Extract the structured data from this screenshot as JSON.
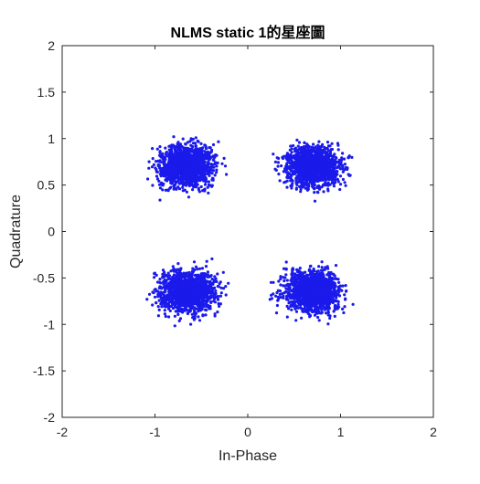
{
  "chart_data": {
    "type": "scatter",
    "title": "NLMS static 1的星座圖",
    "xlabel": "In-Phase",
    "ylabel": "Quadrature",
    "xlim": [
      -2,
      2
    ],
    "ylim": [
      -2,
      2
    ],
    "xticks": [
      -2,
      -1,
      0,
      1,
      2
    ],
    "yticks": [
      -2,
      -1.5,
      -1,
      -0.5,
      0,
      0.5,
      1,
      1.5,
      2
    ],
    "xtick_labels": [
      "-2",
      "-1",
      "0",
      "1",
      "2"
    ],
    "ytick_labels": [
      "-2",
      "-1.5",
      "-1",
      "-0.5",
      "0",
      "0.5",
      "1",
      "1.5",
      "2"
    ],
    "grid": false,
    "marker_color": "#1a1aeb",
    "clusters": [
      {
        "center": [
          -0.65,
          0.7
        ],
        "spread": [
          0.6,
          0.45
        ]
      },
      {
        "center": [
          0.7,
          0.7
        ],
        "spread": [
          0.6,
          0.45
        ]
      },
      {
        "center": [
          -0.65,
          -0.65
        ],
        "spread": [
          0.6,
          0.45
        ]
      },
      {
        "center": [
          0.7,
          -0.65
        ],
        "spread": [
          0.6,
          0.45
        ]
      }
    ]
  }
}
